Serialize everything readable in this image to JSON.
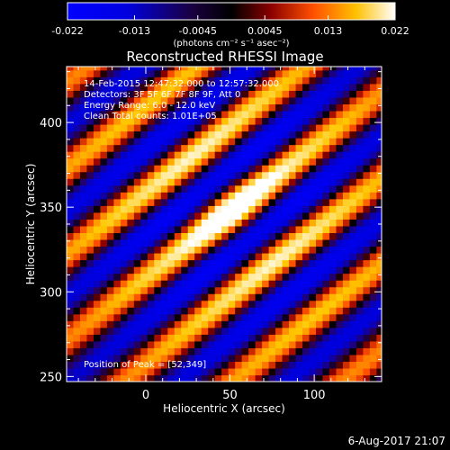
{
  "chart_data": {
    "type": "heatmap",
    "title": "Reconstructed RHESSI Image",
    "xlabel": "Heliocentric X (arcsec)",
    "ylabel": "Heliocentric Y (arcsec)",
    "xlim": [
      -47,
      140
    ],
    "ylim": [
      247,
      433
    ],
    "x_ticks": [
      0,
      50,
      100
    ],
    "y_ticks": [
      250,
      300,
      350,
      400
    ],
    "colorbar": {
      "ticks": [
        "-0.022",
        "-0.013",
        "-0.0045",
        "0.0045",
        "0.013",
        "0.022"
      ],
      "tick_values": [
        -0.022,
        -0.013,
        -0.0045,
        0.0045,
        0.013,
        0.022
      ],
      "range": [
        -0.022,
        0.022
      ],
      "units": "(photons cm⁻² s⁻¹ asec⁻²)"
    },
    "annotations": [
      "14-Feb-2015 12:47:32.000 to 12:57:32.000",
      "Detectors: 3F 5F 6F 7F 8F 9F, Att 0",
      "Energy Range: 6.0 - 12.0 keV",
      "Clean     Total counts: 1.01E+05"
    ],
    "peak_label": "Position of Peak = [52,349]",
    "peak": [
      52,
      349
    ],
    "fringe_period_arcsec": 40,
    "fringe_direction_deg": 52
  },
  "footer": {
    "date": "6-Aug-2017 21:07"
  }
}
